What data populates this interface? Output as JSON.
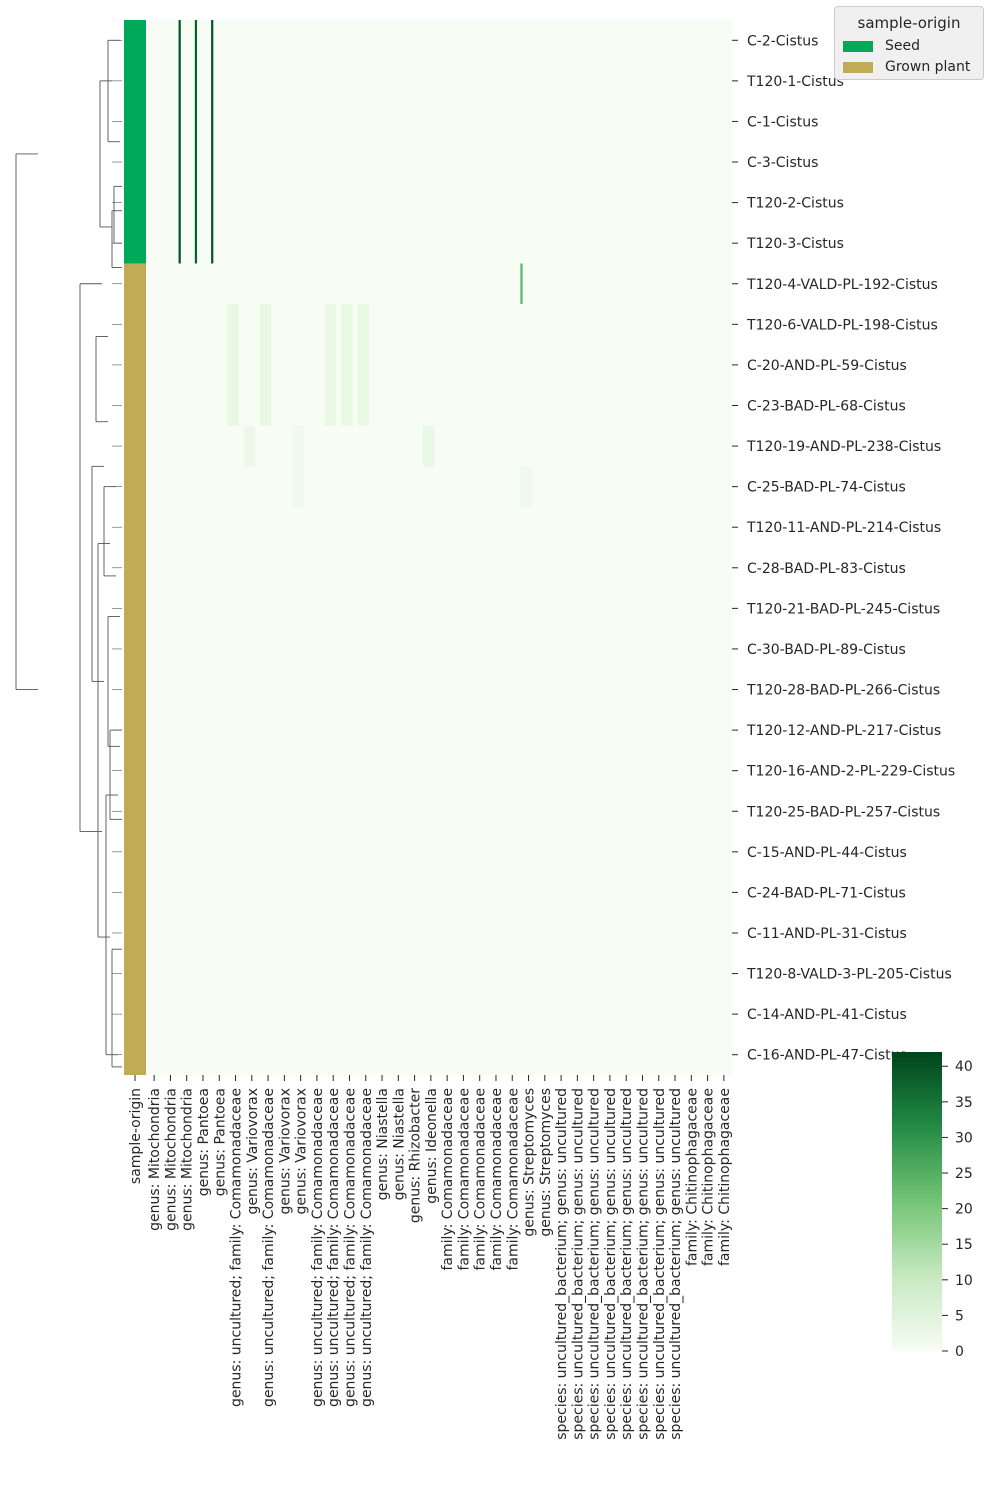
{
  "chart_data": {
    "type": "heatmap",
    "title": "",
    "colormap": "Greens",
    "color_range": [
      0,
      42
    ],
    "colorbar_ticks": [
      0,
      5,
      10,
      15,
      20,
      25,
      30,
      35,
      40
    ],
    "row_color_column_label": "sample-origin",
    "legend": {
      "title": "sample-origin",
      "placement": "top-right",
      "entries": [
        {
          "label": "Seed",
          "color": "#00a85a"
        },
        {
          "label": "Grown plant",
          "color": "#c1ab54"
        }
      ]
    },
    "row_labels": [
      "C-2-Cistus",
      "T120-1-Cistus",
      "C-1-Cistus",
      "C-3-Cistus",
      "T120-2-Cistus",
      "T120-3-Cistus",
      "T120-4-VALD-PL-192-Cistus",
      "T120-6-VALD-PL-198-Cistus",
      "C-20-AND-PL-59-Cistus",
      "C-23-BAD-PL-68-Cistus",
      "T120-19-AND-PL-238-Cistus",
      "C-25-BAD-PL-74-Cistus",
      "T120-11-AND-PL-214-Cistus",
      "C-28-BAD-PL-83-Cistus",
      "T120-21-BAD-PL-245-Cistus",
      "C-30-BAD-PL-89-Cistus",
      "T120-28-BAD-PL-266-Cistus",
      "T120-12-AND-PL-217-Cistus",
      "T120-16-AND-2-PL-229-Cistus",
      "T120-25-BAD-PL-257-Cistus",
      "C-15-AND-PL-44-Cistus",
      "C-24-BAD-PL-71-Cistus",
      "C-11-AND-PL-31-Cistus",
      "T120-8-VALD-3-PL-205-Cistus",
      "C-14-AND-PL-41-Cistus",
      "C-16-AND-PL-47-Cistus"
    ],
    "row_groups": [
      {
        "origin": "Seed",
        "first_row": 0,
        "row_count": 6
      },
      {
        "origin": "Grown plant",
        "first_row": 6,
        "row_count": 20
      }
    ],
    "column_labels": [
      "genus: Mitochondria",
      "genus: Mitochondria",
      "genus: Mitochondria",
      "genus: Pantoea",
      "genus: Pantoea",
      "genus: uncultured;  family: Comamonadaceae",
      "genus: Variovorax",
      "genus: uncultured;  family: Comamonadaceae",
      "genus: Variovorax",
      "genus: Variovorax",
      "genus: uncultured;  family: Comamonadaceae",
      "genus: uncultured;  family: Comamonadaceae",
      "genus: uncultured;  family: Comamonadaceae",
      "genus: uncultured;  family: Comamonadaceae",
      "genus: Niastella",
      "genus: Niastella",
      "genus: Rhizobacter",
      "genus: Ideonella",
      "family: Comamonadaceae",
      "family: Comamonadaceae",
      "family: Comamonadaceae",
      "family: Comamonadaceae",
      "family: Comamonadaceae",
      "genus: Streptomyces",
      "genus: Streptomyces",
      "species: uncultured_bacterium;  genus: uncultured",
      "species: uncultured_bacterium;  genus: uncultured",
      "species: uncultured_bacterium;  genus: uncultured",
      "species: uncultured_bacterium;  genus: uncultured",
      "species: uncultured_bacterium;  genus: uncultured",
      "species: uncultured_bacterium;  genus: uncultured",
      "species: uncultured_bacterium;  genus: uncultured",
      "species: uncultured_bacterium;  genus: uncultured",
      "family: Chitinophagaceae",
      "family: Chitinophagaceae",
      "family: Chitinophagaceae"
    ],
    "cells_note_values": "approximate abundance per (row index, column index); all other cells ~0",
    "high_cells": [
      {
        "rows": [
          0,
          5
        ],
        "col": 2,
        "value": 40
      },
      {
        "rows": [
          0,
          5
        ],
        "col": 3,
        "value": 38
      },
      {
        "rows": [
          0,
          5
        ],
        "col": 4,
        "value": 40
      },
      {
        "rows": [
          6,
          6
        ],
        "col": 23,
        "value": 24
      },
      {
        "rows": [
          7,
          9
        ],
        "col": 5,
        "value": 4
      },
      {
        "rows": [
          7,
          9
        ],
        "col": 7,
        "value": 4
      },
      {
        "rows": [
          7,
          9
        ],
        "col": 11,
        "value": 4
      },
      {
        "rows": [
          7,
          9
        ],
        "col": 12,
        "value": 4
      },
      {
        "rows": [
          7,
          9
        ],
        "col": 13,
        "value": 4
      },
      {
        "rows": [
          10,
          10
        ],
        "col": 6,
        "value": 3
      },
      {
        "rows": [
          10,
          10
        ],
        "col": 17,
        "value": 4
      },
      {
        "rows": [
          10,
          11
        ],
        "col": 9,
        "value": 2
      },
      {
        "rows": [
          11,
          11
        ],
        "col": 23,
        "value": 2
      }
    ]
  }
}
